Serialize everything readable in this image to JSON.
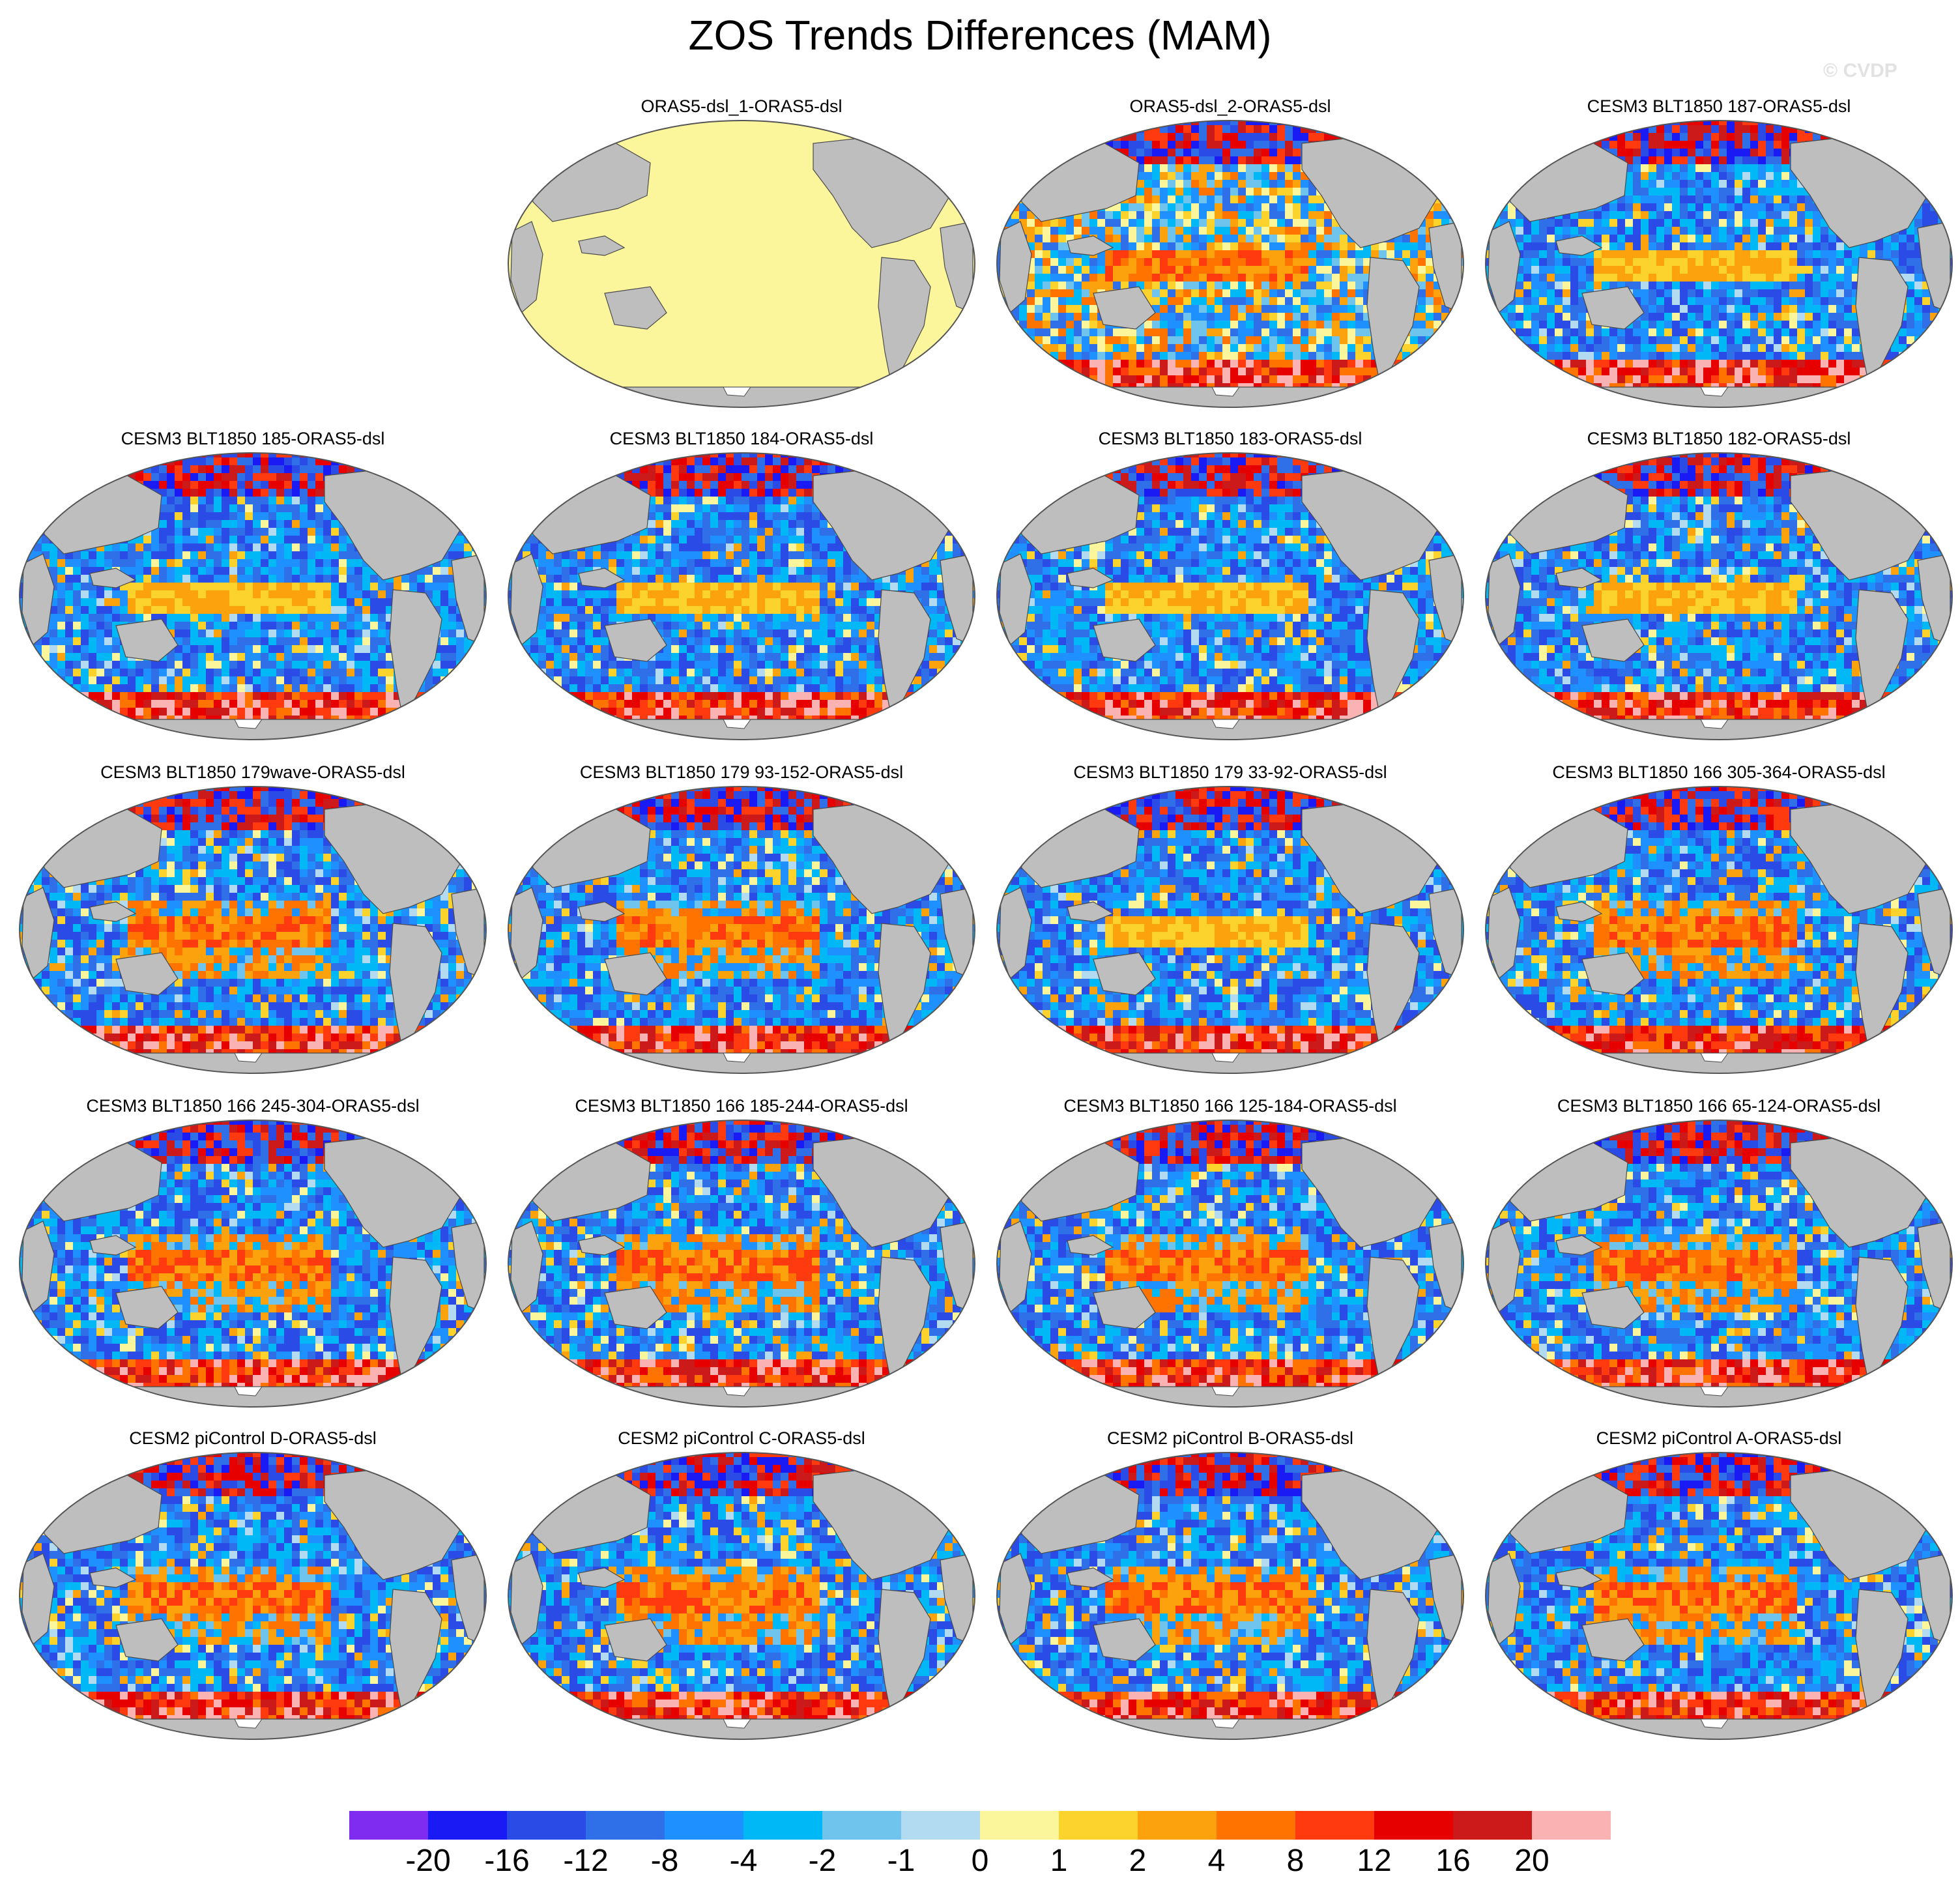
{
  "title": "ZOS Trends Differences (MAM)",
  "watermark": "© CVDP",
  "colors": {
    "land": "#bebebe",
    "coast": "#4a4a4a",
    "flat_field": "#fbf59c",
    "antarctic_ice": "#ffffff"
  },
  "panels": [
    {
      "title": "ORAS5-dsl_1-ORAS5-dsl",
      "pattern": "zero"
    },
    {
      "title": "ORAS5-dsl_2-ORAS5-dsl",
      "pattern": "mixed"
    },
    {
      "title": "CESM3 BLT1850 187-ORAS5-dsl",
      "pattern": "negative"
    },
    {
      "title": "CESM3 BLT1850 185-ORAS5-dsl",
      "pattern": "negative"
    },
    {
      "title": "CESM3 BLT1850 184-ORAS5-dsl",
      "pattern": "negative"
    },
    {
      "title": "CESM3 BLT1850 183-ORAS5-dsl",
      "pattern": "negative"
    },
    {
      "title": "CESM3 BLT1850 182-ORAS5-dsl",
      "pattern": "negative"
    },
    {
      "title": "CESM3 BLT1850 179wave-ORAS5-dsl",
      "pattern": "positive-pacific"
    },
    {
      "title": "CESM3 BLT1850 179 93-152-ORAS5-dsl",
      "pattern": "positive-pacific"
    },
    {
      "title": "CESM3 BLT1850 179 33-92-ORAS5-dsl",
      "pattern": "negative"
    },
    {
      "title": "CESM3 BLT1850 166 305-364-ORAS5-dsl",
      "pattern": "positive-pacific"
    },
    {
      "title": "CESM3 BLT1850 166 245-304-ORAS5-dsl",
      "pattern": "positive-pacific"
    },
    {
      "title": "CESM3 BLT1850 166 185-244-ORAS5-dsl",
      "pattern": "positive-pacific"
    },
    {
      "title": "CESM3 BLT1850 166 125-184-ORAS5-dsl",
      "pattern": "positive-pacific"
    },
    {
      "title": "CESM3 BLT1850 166 65-124-ORAS5-dsl",
      "pattern": "positive-pacific"
    },
    {
      "title": "CESM2 piControl D-ORAS5-dsl",
      "pattern": "positive-pacific"
    },
    {
      "title": "CESM2 piControl C-ORAS5-dsl",
      "pattern": "positive-pacific"
    },
    {
      "title": "CESM2 piControl B-ORAS5-dsl",
      "pattern": "positive-pacific"
    },
    {
      "title": "CESM2 piControl A-ORAS5-dsl",
      "pattern": "positive-pacific"
    }
  ],
  "colorbar": {
    "labels": [
      "-20",
      "-16",
      "-12",
      "-8",
      "-4",
      "-2",
      "-1",
      "0",
      "1",
      "2",
      "4",
      "8",
      "12",
      "16",
      "20"
    ],
    "colors": [
      "#7f2cf0",
      "#1a1af5",
      "#2a4be6",
      "#2f6fe8",
      "#1e90ff",
      "#00b8f5",
      "#6fc4ee",
      "#b2daf0",
      "#fbf59c",
      "#fcd22c",
      "#fca20c",
      "#ff7300",
      "#ff3a0f",
      "#e60000",
      "#cc1a1a",
      "#fbb2b2"
    ]
  }
}
